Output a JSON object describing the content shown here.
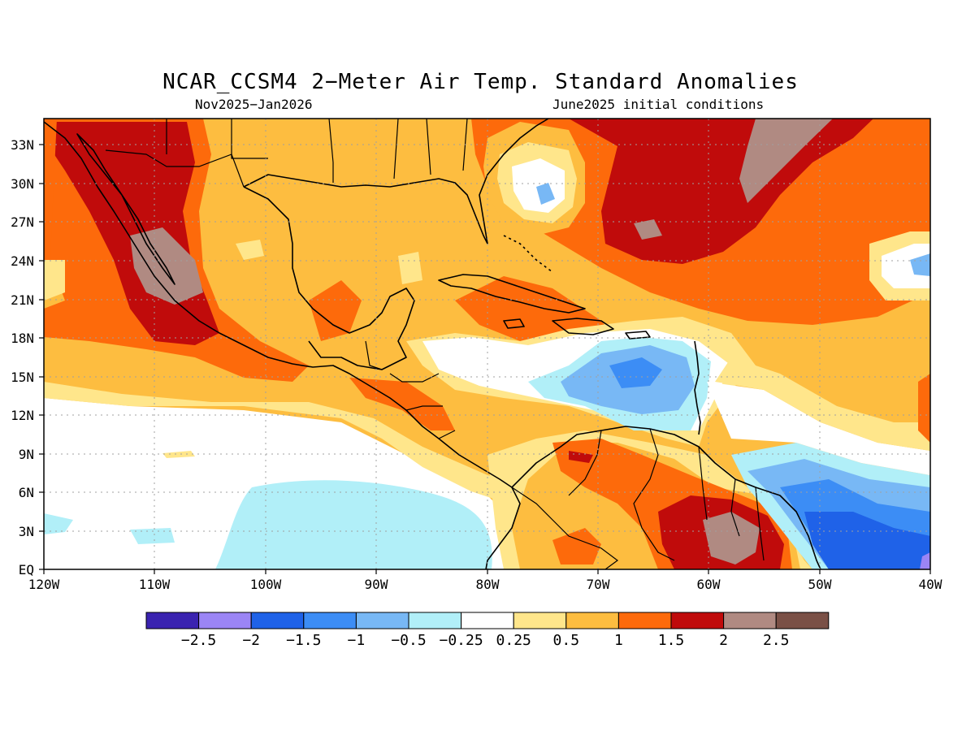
{
  "title": "NCAR_CCSM4 2−Meter Air Temp. Standard Anomalies",
  "subtitle_left": "Nov2025−Jan2026",
  "subtitle_right": "June2025 initial conditions",
  "lat_labels": [
    "33N",
    "30N",
    "27N",
    "24N",
    "21N",
    "18N",
    "15N",
    "12N",
    "9N",
    "6N",
    "3N",
    "EQ"
  ],
  "lon_labels": [
    "120W",
    "110W",
    "100W",
    "90W",
    "80W",
    "70W",
    "60W",
    "50W",
    "40W"
  ],
  "colorbar": {
    "colors": [
      "#3a23b0",
      "#9b85f5",
      "#1f62e8",
      "#3c8df5",
      "#78b8f5",
      "#b1eff8",
      "#ffffff",
      "#ffe68b",
      "#fdbd40",
      "#fd6a0b",
      "#c00b0b",
      "#b08a82",
      "#7a5046"
    ],
    "labels": [
      "−2.5",
      "−2",
      "−1.5",
      "−1",
      "−0.5",
      "−0.25",
      "0.25",
      "0.5",
      "1",
      "1.5",
      "2",
      "2.5"
    ]
  },
  "icons": {
    "coastline": "coastline-outline",
    "border": "country-border-outline"
  }
}
